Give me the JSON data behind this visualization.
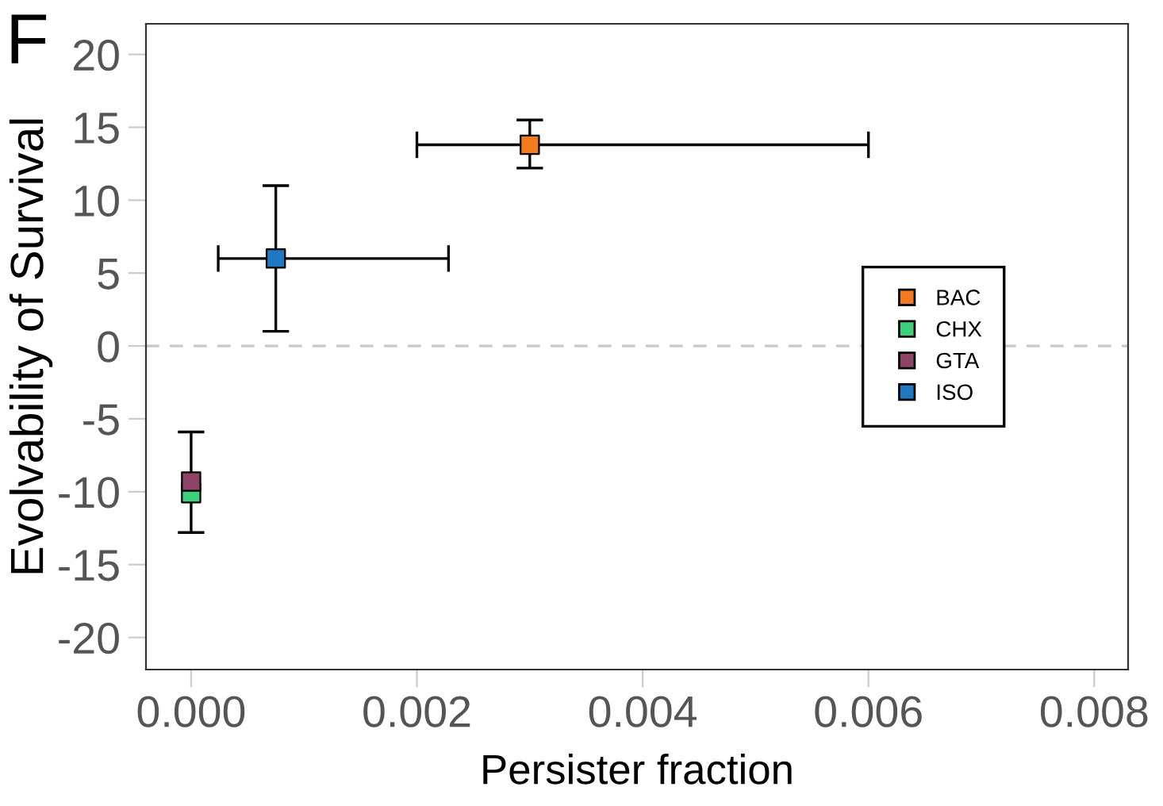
{
  "chart_data": {
    "type": "scatter",
    "xlabel": "Persister fraction",
    "ylabel": "Evolvability of Survival",
    "annotations": [
      "F"
    ],
    "series": [
      {
        "name": "BAC",
        "color": "#f47a20",
        "x": [
          0.003
        ],
        "values": [
          13.8
        ],
        "errors": [
          [
            12.2,
            15.5
          ]
        ],
        "xerrors": [
          [
            0.002,
            0.006
          ]
        ]
      },
      {
        "name": "CHX",
        "color": "#3ecf7a",
        "x": [
          0.0
        ],
        "values": [
          -10.1
        ],
        "errors": [
          null
        ],
        "xerrors": [
          null
        ]
      },
      {
        "name": "GTA",
        "color": "#8e4466",
        "x": [
          0.0
        ],
        "values": [
          -9.3
        ],
        "errors": [
          [
            -12.8,
            -5.9
          ]
        ],
        "xerrors": [
          null
        ]
      },
      {
        "name": "ISO",
        "color": "#1f78c0",
        "x": [
          0.00075
        ],
        "values": [
          6.0
        ],
        "errors": [
          [
            1.0,
            11.0
          ]
        ],
        "xerrors": [
          [
            0.00024,
            0.00228
          ]
        ]
      }
    ],
    "xlim": [
      -0.0004,
      0.0083
    ],
    "ylim": [
      -22.2,
      22.1
    ],
    "xticks": [
      {
        "value": 0,
        "label": "0.000"
      },
      {
        "value": 0.002,
        "label": "0.002"
      },
      {
        "value": 0.004,
        "label": "0.004"
      },
      {
        "value": 0.006,
        "label": "0.006"
      },
      {
        "value": 0.008,
        "label": "0.008"
      }
    ],
    "yticks": [
      20,
      15,
      10,
      5,
      0,
      -5,
      -10,
      -15,
      -20
    ],
    "ref_lines": [
      {
        "axis": "y",
        "value": 0,
        "color": "#c8c8c8",
        "line_style": "dashed"
      }
    ],
    "grid": false,
    "legend": "right",
    "marker": "square"
  }
}
